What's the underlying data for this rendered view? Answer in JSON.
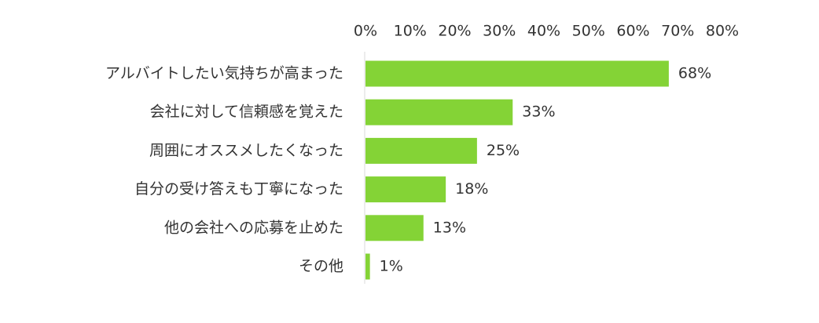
{
  "chart_data": {
    "type": "bar",
    "orientation": "horizontal",
    "categories": [
      "アルバイトしたい気持ちが高まった",
      "会社に対して信頼感を覚えた",
      "周囲にオススメしたくなった",
      "自分の受け答えも丁寧になった",
      "他の会社への応募を止めた",
      "その他"
    ],
    "values": [
      68,
      33,
      25,
      18,
      13,
      1
    ],
    "value_labels": [
      "68%",
      "33%",
      "25%",
      "18%",
      "13%",
      "1%"
    ],
    "x_ticks": [
      0,
      10,
      20,
      30,
      40,
      50,
      60,
      70,
      80
    ],
    "x_tick_labels": [
      "0%",
      "10%",
      "20%",
      "30%",
      "40%",
      "50%",
      "60%",
      "70%",
      "80%"
    ],
    "xlim": [
      0,
      80
    ],
    "axis_position": "top",
    "grid": false,
    "bar_color": "#84d336",
    "axis_color": "#d9d9d9"
  }
}
